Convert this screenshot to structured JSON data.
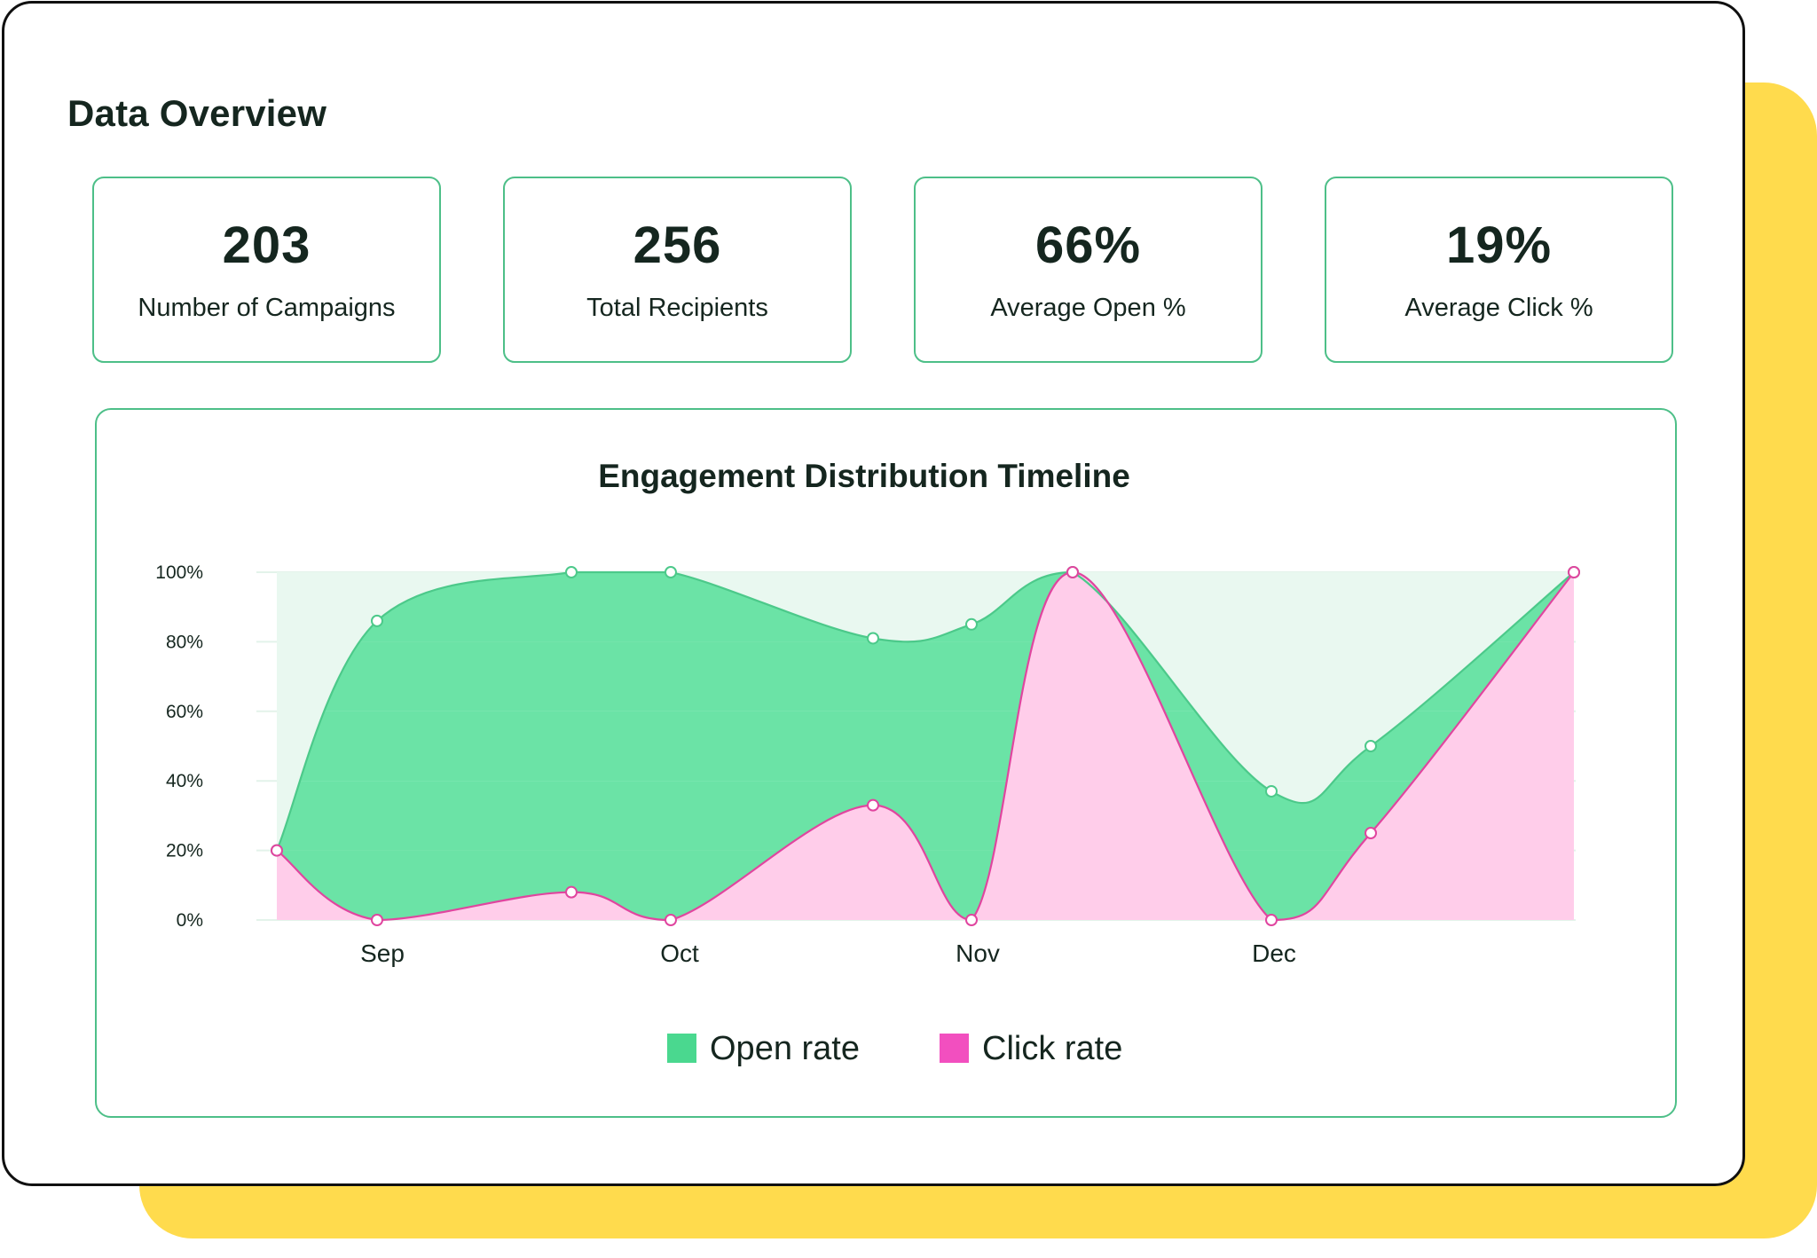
{
  "page": {
    "title": "Data Overview"
  },
  "stats": [
    {
      "value": "203",
      "label": "Number of Campaigns"
    },
    {
      "value": "256",
      "label": "Total Recipients"
    },
    {
      "value": "66%",
      "label": "Average Open %"
    },
    {
      "value": "19%",
      "label": "Average Click %"
    }
  ],
  "colors": {
    "accent_green": "#4dbf88",
    "backdrop_yellow": "#ffdb4d",
    "open_rate": "#4ad88f",
    "click_rate": "#f24fbf"
  },
  "chart_data": {
    "type": "area",
    "title": "Engagement Distribution Timeline",
    "xlabel": "",
    "ylabel": "",
    "x_tick_labels": [
      "Sep",
      "Oct",
      "Nov",
      "Dec"
    ],
    "y_tick_labels": [
      "100%",
      "80%",
      "60%",
      "40%",
      "20%",
      "0%"
    ],
    "ylim": [
      0,
      100
    ],
    "grid": true,
    "legend_position": "bottom-center",
    "series": [
      {
        "name": "Open rate",
        "color": "#4ad88f",
        "values": [
          20,
          86,
          100,
          100,
          81,
          85,
          100,
          37,
          50,
          100
        ]
      },
      {
        "name": "Click rate",
        "color": "#f24fbf",
        "values": [
          20,
          0,
          8,
          0,
          33,
          0,
          100,
          0,
          25,
          100
        ]
      }
    ]
  }
}
